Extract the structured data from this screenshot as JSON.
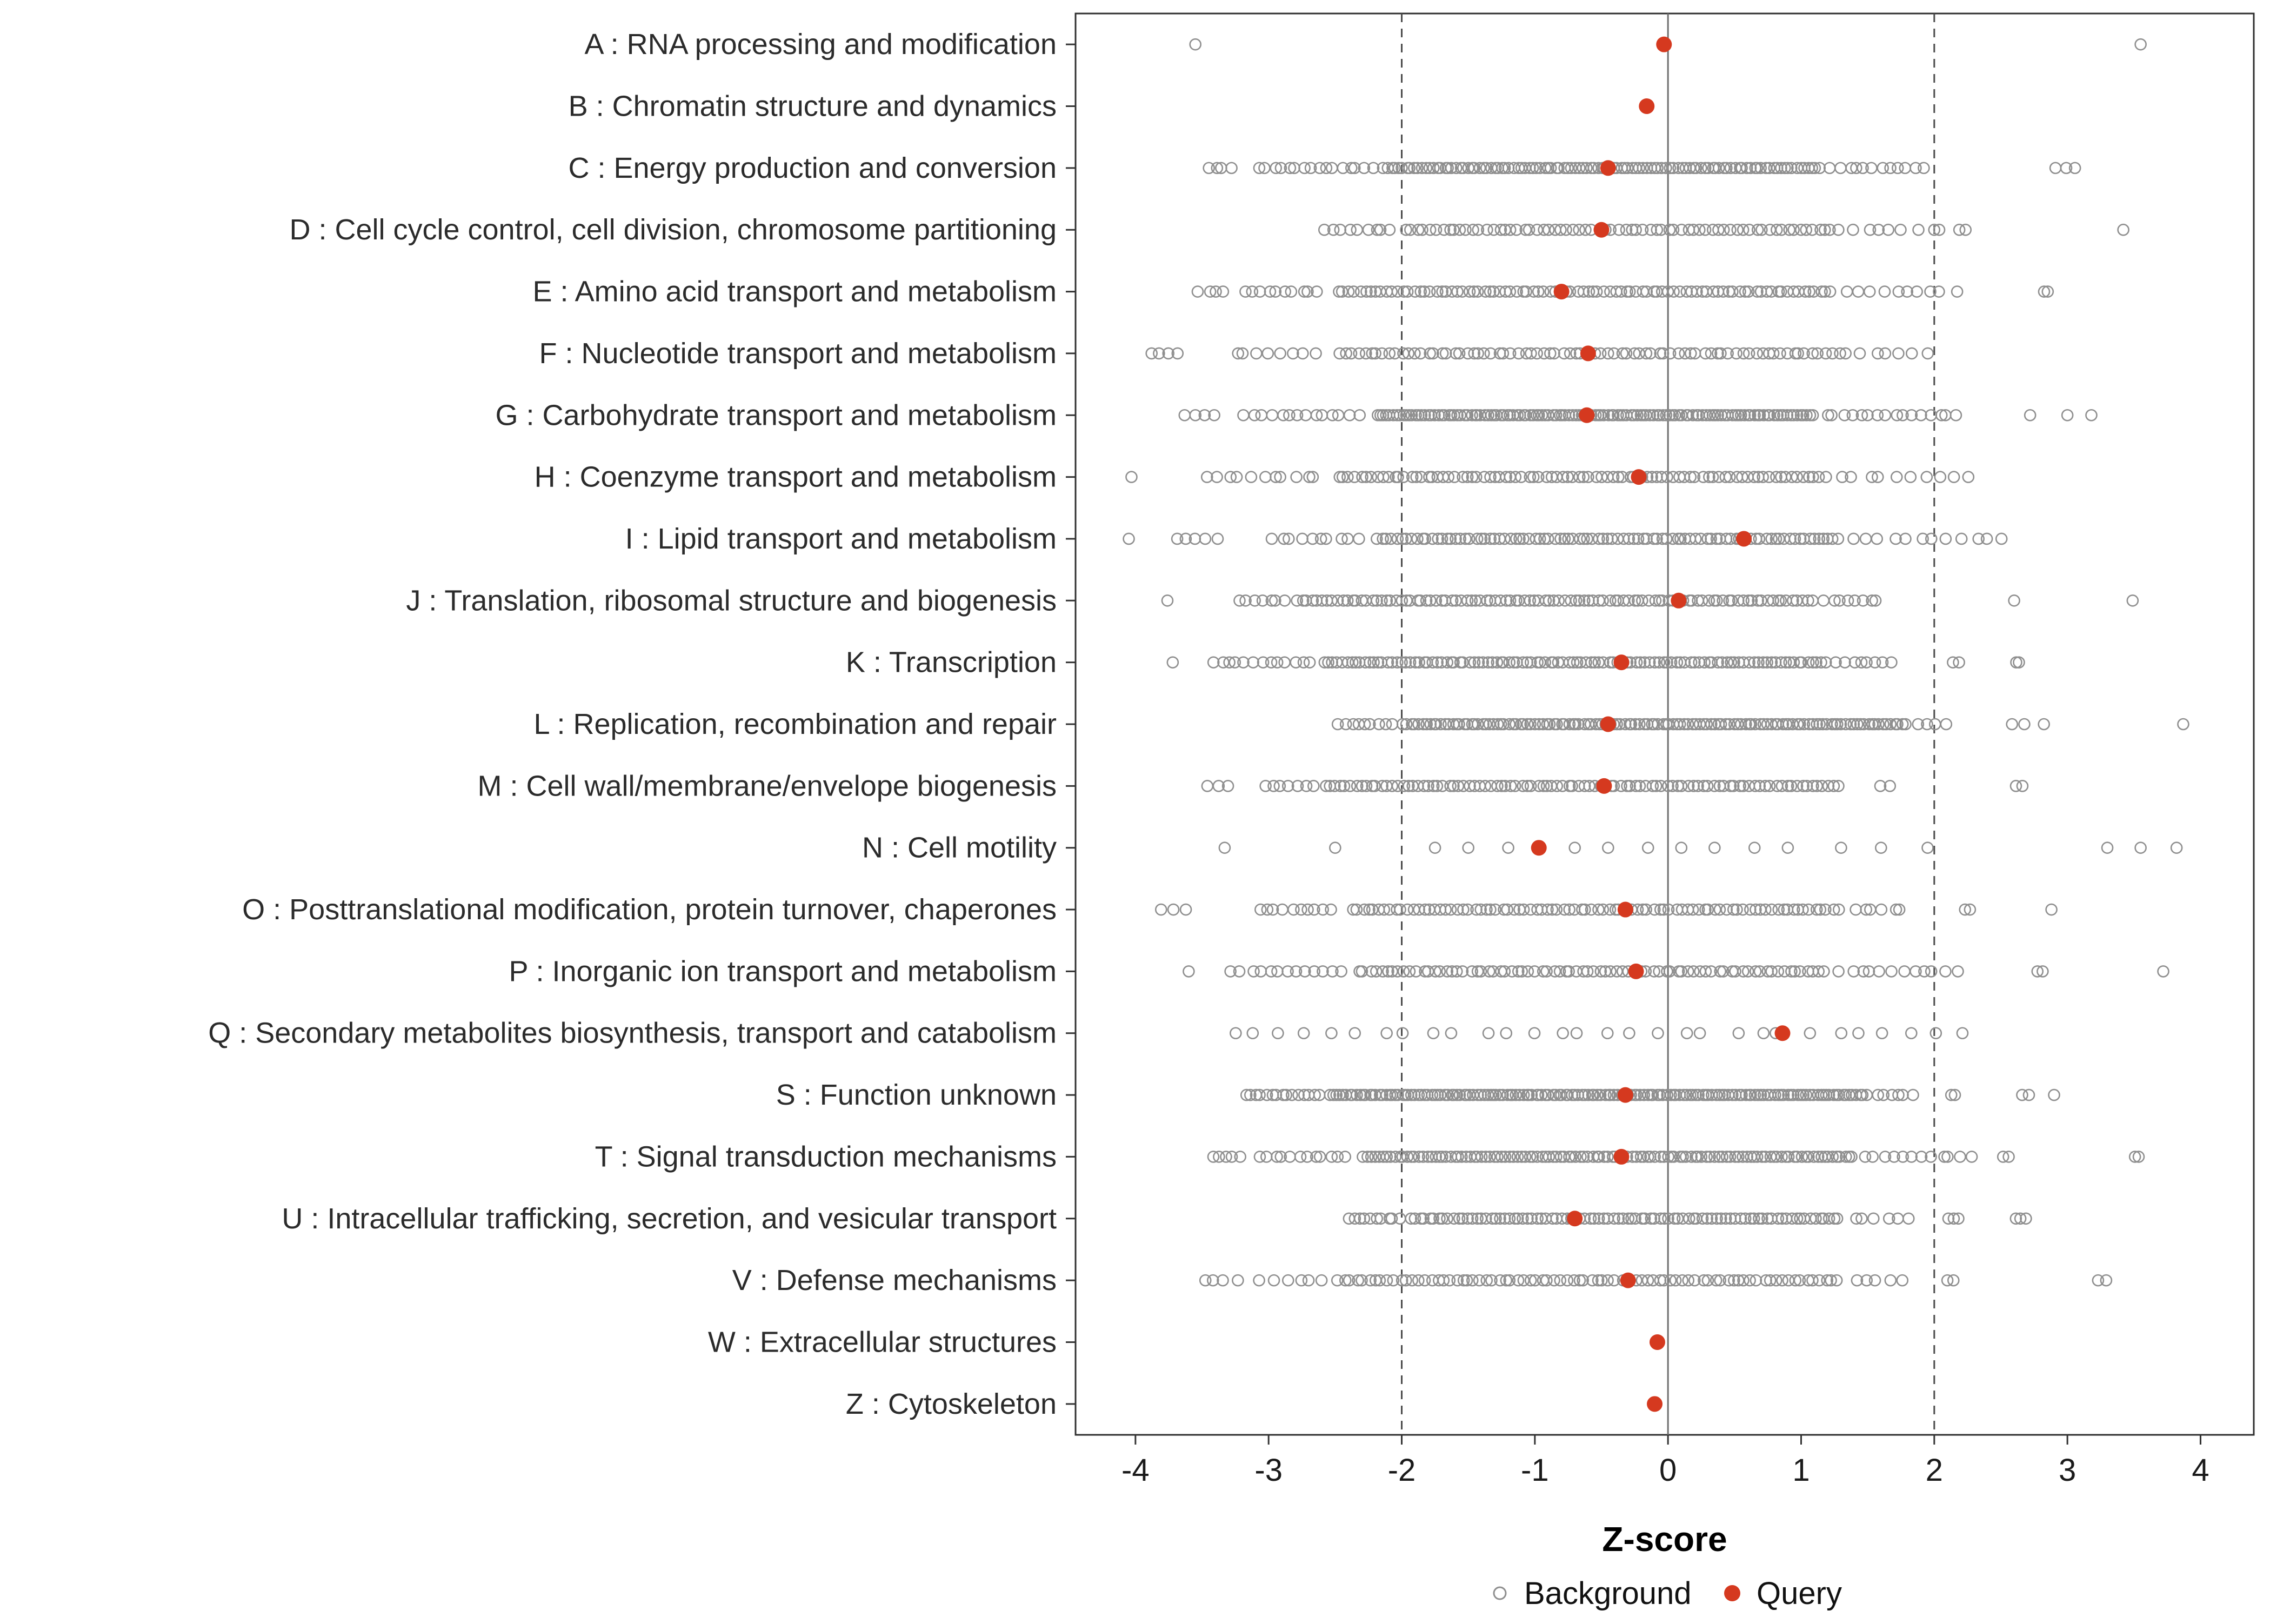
{
  "chart_data": {
    "type": "scatter",
    "subtype": "strip-plot",
    "title": "",
    "xlabel": "Z-score",
    "xlim": [
      -4.45,
      4.4
    ],
    "xticks": [
      -4,
      -3,
      -2,
      -1,
      0,
      1,
      2,
      3,
      4
    ],
    "reference_lines": {
      "solid": [
        0
      ],
      "dashed": [
        -2,
        2
      ]
    },
    "grid": false,
    "legend_position": "bottom",
    "legend": {
      "background_label": "Background",
      "query_label": "Query"
    },
    "colors": {
      "background_point": "#8f8f8f",
      "query_point": "#d5391f",
      "panel_border": "#2f2f2f",
      "zero_line": "#6e6e6e",
      "dashed_line": "#4a4a4a",
      "tick": "#333333"
    },
    "categories": [
      {
        "code": "A",
        "label": "A : RNA processing and modification",
        "query": -0.03,
        "bg": [
          [
            -3.55,
            -3.55,
            1
          ],
          [
            3.55,
            3.55,
            1
          ]
        ]
      },
      {
        "code": "B",
        "label": "B : Chromatin structure and dynamics",
        "query": -0.16,
        "bg": []
      },
      {
        "code": "C",
        "label": "C : Energy production and conversion",
        "query": -0.45,
        "bg": [
          [
            -3.5,
            -3.25,
            4
          ],
          [
            -3.1,
            -2.2,
            16
          ],
          [
            -2.15,
            1.15,
            115
          ],
          [
            1.2,
            1.95,
            12
          ],
          [
            2.9,
            3.1,
            3
          ]
        ]
      },
      {
        "code": "D",
        "label": "D : Cell cycle control, cell division, chromosome partitioning",
        "query": -0.5,
        "bg": [
          [
            -2.6,
            -2.05,
            9
          ],
          [
            -2.0,
            1.3,
            70
          ],
          [
            1.35,
            2.3,
            10
          ],
          [
            3.42,
            3.42,
            1
          ]
        ]
      },
      {
        "code": "E",
        "label": "E : Amino acid transport and metabolism",
        "query": -0.8,
        "bg": [
          [
            -3.55,
            -3.3,
            4
          ],
          [
            -3.2,
            -2.6,
            10
          ],
          [
            -2.5,
            1.25,
            92
          ],
          [
            1.3,
            2.2,
            10
          ],
          [
            2.78,
            2.9,
            2
          ]
        ]
      },
      {
        "code": "F",
        "label": "F : Nucleotide transport and metabolism",
        "query": -0.6,
        "bg": [
          [
            -3.9,
            -3.65,
            4
          ],
          [
            -3.3,
            -2.6,
            8
          ],
          [
            -2.5,
            1.35,
            80
          ],
          [
            1.4,
            2.0,
            6
          ]
        ]
      },
      {
        "code": "G",
        "label": "G : Carbohydrate transport and metabolism",
        "query": -0.61,
        "bg": [
          [
            -3.68,
            -3.35,
            4
          ],
          [
            -3.2,
            -2.3,
            14
          ],
          [
            -2.2,
            1.1,
            135
          ],
          [
            1.15,
            2.2,
            16
          ],
          [
            2.72,
            2.72,
            1
          ],
          [
            3.0,
            3.0,
            1
          ],
          [
            3.18,
            3.18,
            1
          ]
        ]
      },
      {
        "code": "H",
        "label": "H : Coenzyme transport and metabolism",
        "query": -0.22,
        "bg": [
          [
            -4.03,
            -4.03,
            1
          ],
          [
            -3.5,
            -2.6,
            11
          ],
          [
            -2.5,
            1.2,
            88
          ],
          [
            1.25,
            2.28,
            10
          ]
        ]
      },
      {
        "code": "I",
        "label": "I : Lipid transport and metabolism",
        "query": 0.57,
        "bg": [
          [
            -4.05,
            -4.05,
            1
          ],
          [
            -3.75,
            -3.35,
            5
          ],
          [
            -3.0,
            -2.3,
            10
          ],
          [
            -2.2,
            1.3,
            95
          ],
          [
            1.35,
            2.55,
            12
          ]
        ]
      },
      {
        "code": "J",
        "label": "J : Translation, ribosomal structure and biogenesis",
        "query": 0.08,
        "bg": [
          [
            -3.76,
            -3.76,
            1
          ],
          [
            -3.25,
            -2.85,
            7
          ],
          [
            -2.8,
            1.1,
            105
          ],
          [
            1.15,
            1.6,
            8
          ],
          [
            2.6,
            2.6,
            1
          ],
          [
            3.49,
            3.49,
            1
          ]
        ]
      },
      {
        "code": "K",
        "label": "K : Transcription",
        "query": -0.35,
        "bg": [
          [
            -3.72,
            -3.72,
            1
          ],
          [
            -3.45,
            -2.65,
            13
          ],
          [
            -2.6,
            1.2,
            112
          ],
          [
            1.25,
            1.7,
            8
          ],
          [
            2.1,
            2.2,
            2
          ],
          [
            2.6,
            2.65,
            2
          ]
        ]
      },
      {
        "code": "L",
        "label": "L : Replication, recombination and repair",
        "query": -0.45,
        "bg": [
          [
            -2.5,
            -2.05,
            9
          ],
          [
            -2.0,
            1.8,
            135
          ],
          [
            1.85,
            2.1,
            4
          ],
          [
            2.5,
            2.9,
            3
          ],
          [
            3.87,
            3.87,
            1
          ]
        ]
      },
      {
        "code": "M",
        "label": "M : Cell wall/membrane/envelope biogenesis",
        "query": -0.48,
        "bg": [
          [
            -3.5,
            -3.28,
            3
          ],
          [
            -3.05,
            -2.65,
            7
          ],
          [
            -2.6,
            1.3,
            100
          ],
          [
            1.58,
            1.68,
            2
          ],
          [
            2.6,
            2.68,
            2
          ]
        ]
      },
      {
        "code": "N",
        "label": "N : Cell motility",
        "query": -0.97,
        "bg": [],
        "pts": [
          -3.33,
          -2.5,
          -1.75,
          -1.5,
          -1.2,
          -0.7,
          -0.45,
          -0.15,
          0.1,
          0.35,
          0.65,
          0.9,
          1.3,
          1.6,
          1.95,
          3.3,
          3.55,
          3.82
        ]
      },
      {
        "code": "O",
        "label": "O : Posttranslational modification, protein turnover, chaperones",
        "query": -0.32,
        "bg": [
          [
            -3.82,
            -3.6,
            3
          ],
          [
            -3.1,
            -2.5,
            10
          ],
          [
            -2.4,
            1.3,
            88
          ],
          [
            1.35,
            1.8,
            6
          ],
          [
            2.2,
            2.28,
            2
          ],
          [
            2.88,
            2.88,
            1
          ]
        ]
      },
      {
        "code": "P",
        "label": "P : Inorganic ion transport and metabolism",
        "query": -0.24,
        "bg": [
          [
            -3.6,
            -3.6,
            1
          ],
          [
            -3.3,
            -2.4,
            13
          ],
          [
            -2.35,
            1.2,
            80
          ],
          [
            1.25,
            2.2,
            12
          ],
          [
            2.75,
            2.82,
            2
          ],
          [
            3.72,
            3.72,
            1
          ]
        ]
      },
      {
        "code": "Q",
        "label": "Q : Secondary metabolites biosynthesis, transport and catabolism",
        "query": 0.86,
        "bg": [
          [
            -3.4,
            2.3,
            30
          ]
        ]
      },
      {
        "code": "S",
        "label": "S : Function unknown",
        "query": -0.32,
        "bg": [
          [
            -3.2,
            -2.6,
            15
          ],
          [
            -2.55,
            1.5,
            165
          ],
          [
            1.55,
            1.85,
            6
          ],
          [
            2.1,
            2.18,
            2
          ],
          [
            2.65,
            2.72,
            2
          ],
          [
            2.9,
            2.9,
            1
          ]
        ]
      },
      {
        "code": "T",
        "label": "T : Signal transduction mechanisms",
        "query": -0.35,
        "bg": [
          [
            -3.45,
            -3.2,
            5
          ],
          [
            -3.1,
            -2.4,
            12
          ],
          [
            -2.3,
            1.4,
            125
          ],
          [
            1.45,
            2.3,
            12
          ],
          [
            2.5,
            2.58,
            2
          ],
          [
            3.48,
            3.56,
            2
          ]
        ]
      },
      {
        "code": "U",
        "label": "U : Intracellular trafficking, secretion, and vesicular transport",
        "query": -0.7,
        "bg": [
          [
            -2.42,
            -2.0,
            10
          ],
          [
            -1.95,
            1.3,
            92
          ],
          [
            1.35,
            1.85,
            6
          ],
          [
            2.08,
            2.2,
            3
          ],
          [
            2.6,
            2.7,
            3
          ]
        ]
      },
      {
        "code": "V",
        "label": "V : Defense mechanisms",
        "query": -0.3,
        "bg": [
          [
            -3.52,
            -3.2,
            4
          ],
          [
            -3.1,
            -2.55,
            6
          ],
          [
            -2.5,
            1.3,
            82
          ],
          [
            1.35,
            1.8,
            5
          ],
          [
            2.08,
            2.15,
            2
          ],
          [
            3.22,
            3.3,
            2
          ]
        ]
      },
      {
        "code": "W",
        "label": "W : Extracellular structures",
        "query": -0.08,
        "bg": []
      },
      {
        "code": "Z",
        "label": "Z : Cytoskeleton",
        "query": -0.1,
        "bg": []
      }
    ]
  }
}
